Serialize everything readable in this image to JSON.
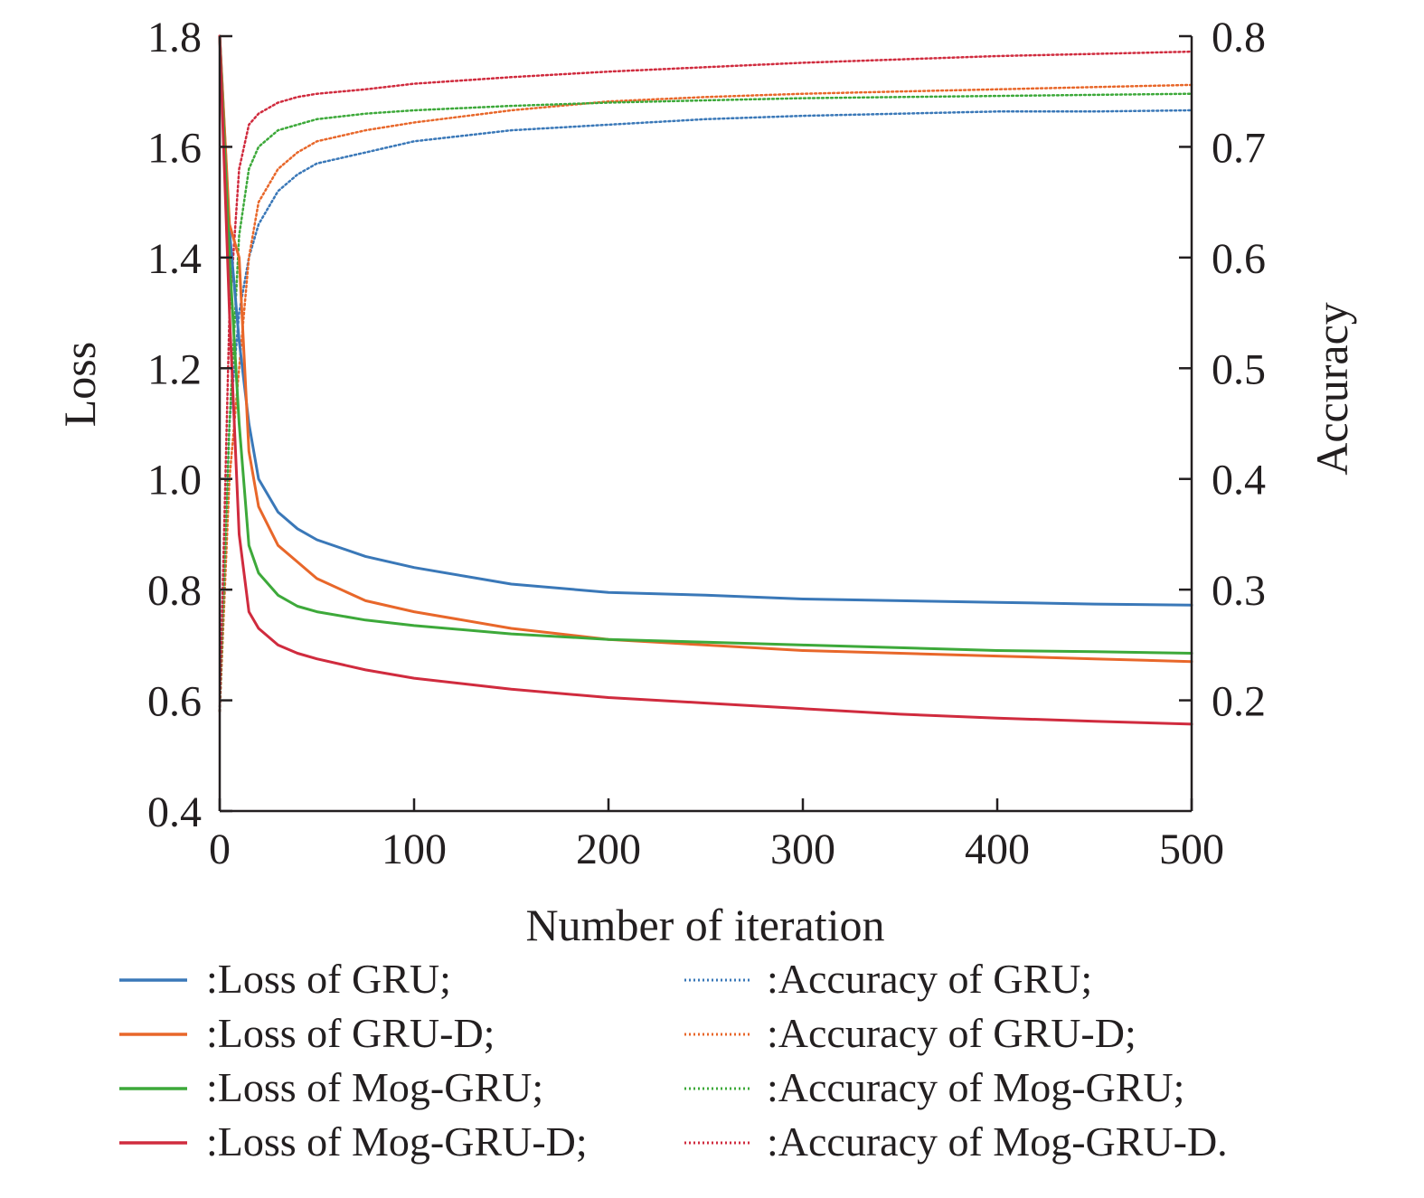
{
  "chart_data": {
    "type": "line",
    "xlabel": "Number of iteration",
    "ylabel_left": "Loss",
    "ylabel_right": "Accuracy",
    "x_range": [
      0,
      500
    ],
    "ylim_left": [
      0.4,
      1.8
    ],
    "ylim_right": [
      0.1,
      0.8
    ],
    "x_ticks": [
      0,
      100,
      200,
      300,
      400,
      500
    ],
    "x_tick_labels": [
      "0",
      "100",
      "200",
      "300",
      "400",
      "500"
    ],
    "y_ticks_left": [
      0.4,
      0.6,
      0.8,
      1.0,
      1.2,
      1.4,
      1.6,
      1.8
    ],
    "y_tick_labels_left": [
      "0.4",
      "0.6",
      "0.8",
      "1.0",
      "1.2",
      "1.4",
      "1.6",
      "1.8"
    ],
    "y_ticks_right": [
      0.2,
      0.3,
      0.4,
      0.5,
      0.6,
      0.7,
      0.8
    ],
    "y_tick_labels_right": [
      "0.2",
      "0.3",
      "0.4",
      "0.5",
      "0.6",
      "0.7",
      "0.8"
    ],
    "grid": false,
    "legend_position": "bottom",
    "series": [
      {
        "name": ":Loss of GRU;",
        "axis": "left",
        "style": "solid",
        "color": "#3a78b8",
        "x": [
          0,
          5,
          10,
          15,
          20,
          30,
          40,
          50,
          75,
          100,
          150,
          200,
          250,
          300,
          350,
          400,
          450,
          500
        ],
        "values": [
          1.8,
          1.45,
          1.25,
          1.1,
          1.0,
          0.94,
          0.91,
          0.89,
          0.86,
          0.84,
          0.81,
          0.795,
          0.79,
          0.783,
          0.78,
          0.777,
          0.774,
          0.772
        ]
      },
      {
        "name": ":Loss of GRU-D;",
        "axis": "left",
        "style": "solid",
        "color": "#e8672a",
        "x": [
          0,
          5,
          10,
          15,
          20,
          30,
          40,
          50,
          75,
          100,
          150,
          200,
          250,
          300,
          350,
          400,
          450,
          500
        ],
        "values": [
          1.8,
          1.46,
          1.4,
          1.05,
          0.95,
          0.88,
          0.85,
          0.82,
          0.78,
          0.76,
          0.73,
          0.71,
          0.7,
          0.69,
          0.685,
          0.68,
          0.675,
          0.67
        ]
      },
      {
        "name": ":Loss of Mog-GRU;",
        "axis": "left",
        "style": "solid",
        "color": "#3da93a",
        "x": [
          0,
          5,
          10,
          15,
          20,
          30,
          40,
          50,
          75,
          100,
          150,
          200,
          250,
          300,
          350,
          400,
          450,
          500
        ],
        "values": [
          1.8,
          1.4,
          1.1,
          0.88,
          0.83,
          0.79,
          0.77,
          0.76,
          0.745,
          0.735,
          0.72,
          0.71,
          0.705,
          0.7,
          0.695,
          0.69,
          0.688,
          0.685
        ]
      },
      {
        "name": ":Loss of Mog-GRU-D;",
        "axis": "left",
        "style": "solid",
        "color": "#d02b3e",
        "x": [
          0,
          5,
          10,
          15,
          20,
          30,
          40,
          50,
          75,
          100,
          150,
          200,
          250,
          300,
          350,
          400,
          450,
          500
        ],
        "values": [
          1.8,
          1.3,
          0.9,
          0.76,
          0.73,
          0.7,
          0.685,
          0.675,
          0.655,
          0.64,
          0.62,
          0.605,
          0.595,
          0.585,
          0.575,
          0.568,
          0.562,
          0.557
        ]
      },
      {
        "name": ":Accuracy of GRU;",
        "axis": "right",
        "style": "dotted",
        "color": "#3a78b8",
        "x": [
          0,
          5,
          10,
          15,
          20,
          30,
          40,
          50,
          75,
          100,
          150,
          200,
          250,
          300,
          350,
          400,
          450,
          500
        ],
        "values": [
          0.19,
          0.45,
          0.55,
          0.6,
          0.63,
          0.66,
          0.675,
          0.685,
          0.695,
          0.705,
          0.715,
          0.72,
          0.725,
          0.728,
          0.73,
          0.732,
          0.732,
          0.733
        ]
      },
      {
        "name": ":Accuracy of GRU-D;",
        "axis": "right",
        "style": "dotted",
        "color": "#e8672a",
        "x": [
          0,
          5,
          10,
          15,
          20,
          30,
          40,
          50,
          75,
          100,
          150,
          200,
          250,
          300,
          350,
          400,
          450,
          500
        ],
        "values": [
          0.19,
          0.4,
          0.5,
          0.6,
          0.65,
          0.68,
          0.695,
          0.705,
          0.715,
          0.722,
          0.733,
          0.741,
          0.745,
          0.748,
          0.75,
          0.752,
          0.754,
          0.756
        ]
      },
      {
        "name": ":Accuracy of Mog-GRU;",
        "axis": "right",
        "style": "dotted",
        "color": "#3da93a",
        "x": [
          0,
          5,
          10,
          15,
          20,
          30,
          40,
          50,
          75,
          100,
          150,
          200,
          250,
          300,
          350,
          400,
          450,
          500
        ],
        "values": [
          0.19,
          0.45,
          0.62,
          0.68,
          0.7,
          0.715,
          0.72,
          0.725,
          0.73,
          0.733,
          0.737,
          0.74,
          0.742,
          0.744,
          0.745,
          0.746,
          0.747,
          0.748
        ]
      },
      {
        "name": ":Accuracy of Mog-GRU-D.",
        "axis": "right",
        "style": "dotted",
        "color": "#d02b3e",
        "x": [
          0,
          5,
          10,
          15,
          20,
          30,
          40,
          50,
          75,
          100,
          150,
          200,
          250,
          300,
          350,
          400,
          450,
          500
        ],
        "values": [
          0.19,
          0.55,
          0.68,
          0.72,
          0.73,
          0.74,
          0.745,
          0.748,
          0.752,
          0.757,
          0.763,
          0.768,
          0.772,
          0.776,
          0.779,
          0.782,
          0.784,
          0.786
        ]
      }
    ]
  }
}
